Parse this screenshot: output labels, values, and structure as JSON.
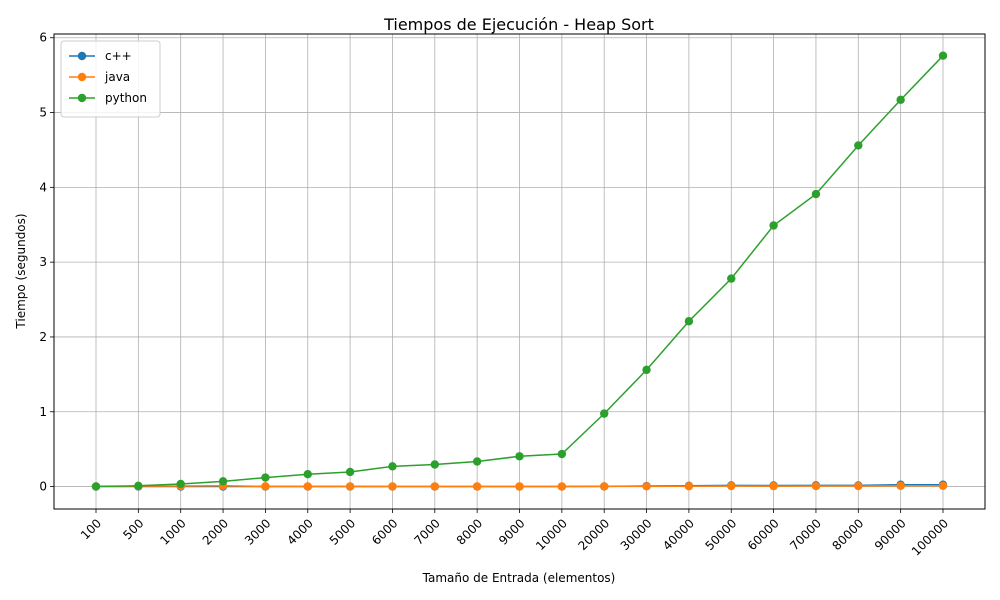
{
  "chart_data": {
    "type": "line",
    "title": "Tiempos de Ejecución - Heap Sort",
    "xlabel": "Tamaño de Entrada (elementos)",
    "ylabel": "Tiempo (segundos)",
    "categories": [
      "100",
      "500",
      "1000",
      "2000",
      "3000",
      "4000",
      "5000",
      "6000",
      "7000",
      "8000",
      "9000",
      "10000",
      "20000",
      "30000",
      "40000",
      "50000",
      "60000",
      "70000",
      "80000",
      "90000",
      "100000"
    ],
    "ylim": [
      -0.3,
      6.05
    ],
    "yticks": [
      0,
      1,
      2,
      3,
      4,
      5,
      6
    ],
    "grid": true,
    "legend_position": "top-left",
    "series": [
      {
        "name": "c++",
        "color": "#1f77b4",
        "values": [
          0.0,
          0.0,
          0.0,
          0.0,
          0.0,
          0.0,
          0.0,
          0.0,
          0.0,
          0.0,
          0.0,
          0.0,
          0.002,
          0.007,
          0.01,
          0.015,
          0.014,
          0.016,
          0.015,
          0.025,
          0.025
        ]
      },
      {
        "name": "java",
        "color": "#ff7f0e",
        "values": [
          0.002,
          0.005,
          0.008,
          0.01,
          0.003,
          0.002,
          0.002,
          0.001,
          0.001,
          0.001,
          0.001,
          0.001,
          0.002,
          0.003,
          0.004,
          0.007,
          0.006,
          0.007,
          0.007,
          0.01,
          0.01
        ]
      },
      {
        "name": "python",
        "color": "#2ca02c",
        "values": [
          0.002,
          0.01,
          0.035,
          0.07,
          0.12,
          0.165,
          0.195,
          0.27,
          0.295,
          0.335,
          0.405,
          0.435,
          0.975,
          1.56,
          2.21,
          2.78,
          3.49,
          3.91,
          4.56,
          5.17,
          5.76
        ]
      }
    ]
  }
}
